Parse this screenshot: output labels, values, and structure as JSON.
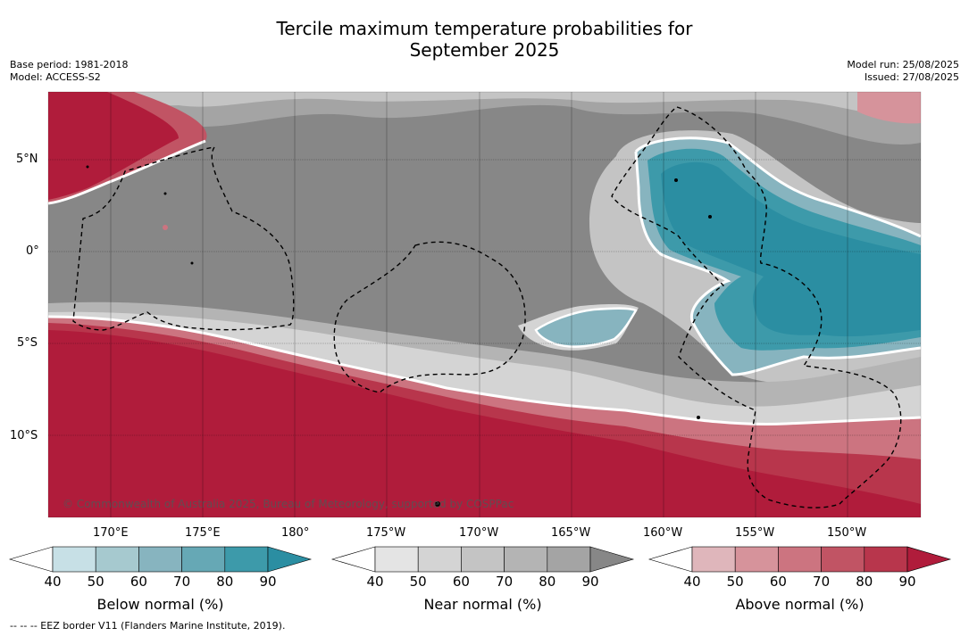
{
  "title_line1": "Tercile maximum temperature probabilities for",
  "title_line2": "September 2025",
  "base_period": "Base period: 1981-2018",
  "model": "Model: ACCESS-S2",
  "model_run": "Model run: 25/08/2025",
  "issued": "Issued: 27/08/2025",
  "copyright": "© Commonwealth of Australia 2025, Bureau of Meteorology, supported by COSPPac",
  "footnote": "--  --  -- EEZ border V11 (Flanders Marine Institute, 2019).",
  "lat_labels": [
    "5°N",
    "0°",
    "5°S",
    "10°S"
  ],
  "lon_labels": [
    "170°E",
    "175°E",
    "180°",
    "175°W",
    "170°W",
    "165°W",
    "160°W",
    "155°W",
    "150°W"
  ],
  "colorbars": [
    {
      "label": "Below normal (%)",
      "ticks": [
        "40",
        "50",
        "60",
        "70",
        "80",
        "90"
      ],
      "colors": [
        "#ffffff",
        "#c7e0e6",
        "#a6c9cf",
        "#87b4bf",
        "#66a8b5",
        "#3d9aaa",
        "#2b8ea2"
      ]
    },
    {
      "label": "Near normal (%)",
      "ticks": [
        "40",
        "50",
        "60",
        "70",
        "80",
        "90"
      ],
      "colors": [
        "#ffffff",
        "#e4e4e4",
        "#d4d4d4",
        "#c4c4c4",
        "#b4b4b4",
        "#a4a4a4",
        "#878787"
      ]
    },
    {
      "label": "Above normal (%)",
      "ticks": [
        "40",
        "50",
        "60",
        "70",
        "80",
        "90"
      ],
      "colors": [
        "#ffffff",
        "#dfb6bb",
        "#d6939b",
        "#cc7480",
        "#c15464",
        "#b8364c",
        "#b01c3b"
      ]
    }
  ]
}
